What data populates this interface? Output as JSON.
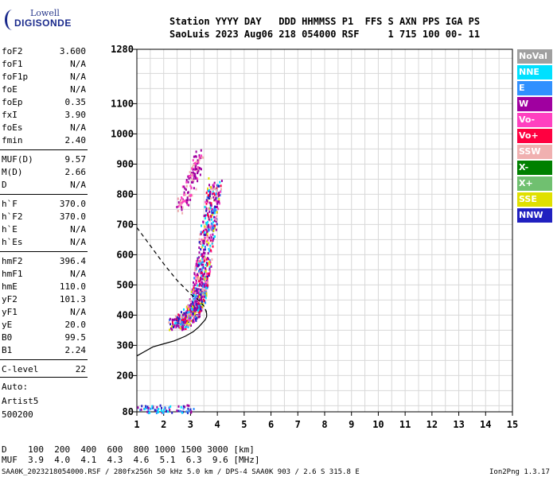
{
  "logo": {
    "line1": "Lowell",
    "line2": "DIGISONDE"
  },
  "header": {
    "line1": "Station YYYY DAY   DDD HHMMSS P1  FFS S AXN PPS IGA PS",
    "line2": "SaoLuis 2023 Aug06 218 054000 RSF     1 715 100 00- 11"
  },
  "params": [
    {
      "key": "foF2",
      "value": "3.600"
    },
    {
      "key": "foF1",
      "value": "N/A"
    },
    {
      "key": "foF1p",
      "value": "N/A"
    },
    {
      "key": "foE",
      "value": "N/A"
    },
    {
      "key": "foEp",
      "value": "0.35"
    },
    {
      "key": "fxI",
      "value": "3.90"
    },
    {
      "key": "foEs",
      "value": "N/A"
    },
    {
      "key": "fmin",
      "value": "2.40"
    },
    {
      "key": "MUF(D)",
      "value": "9.57"
    },
    {
      "key": "M(D)",
      "value": "2.66"
    },
    {
      "key": "D",
      "value": "N/A"
    },
    {
      "key": "h`F",
      "value": "370.0"
    },
    {
      "key": "h`F2",
      "value": "370.0"
    },
    {
      "key": "h`E",
      "value": "N/A"
    },
    {
      "key": "h`Es",
      "value": "N/A"
    },
    {
      "key": "hmF2",
      "value": "396.4"
    },
    {
      "key": "hmF1",
      "value": "N/A"
    },
    {
      "key": "hmE",
      "value": "110.0"
    },
    {
      "key": "yF2",
      "value": "101.3"
    },
    {
      "key": "yF1",
      "value": "N/A"
    },
    {
      "key": "yE",
      "value": "20.0"
    },
    {
      "key": "B0",
      "value": "99.5"
    },
    {
      "key": "B1",
      "value": "2.24"
    },
    {
      "key": "C-level",
      "value": "22"
    }
  ],
  "autoscale": {
    "label": "Auto:",
    "artist": "Artist5",
    "code": "500200"
  },
  "legend": [
    {
      "label": "NoVal",
      "color": "#a0a0a0"
    },
    {
      "label": "NNE",
      "color": "#00e0ff"
    },
    {
      "label": "E",
      "color": "#3090ff"
    },
    {
      "label": "W",
      "color": "#a000a0"
    },
    {
      "label": "Vo-",
      "color": "#ff40c0"
    },
    {
      "label": "Vo+",
      "color": "#ff0040"
    },
    {
      "label": "SSW",
      "color": "#f0b0b0"
    },
    {
      "label": "X-",
      "color": "#008000"
    },
    {
      "label": "X+",
      "color": "#70c070"
    },
    {
      "label": "SSE",
      "color": "#e0e000"
    },
    {
      "label": "NNW",
      "color": "#2020c0"
    }
  ],
  "muf_table": {
    "line1": "D    100  200  400  600  800 1000 1500 3000 [km]",
    "line2": "MUF  3.9  4.0  4.1  4.3  4.6  5.1  6.3  9.6 [MHz]"
  },
  "footer": {
    "left": "SAA0K_2023218054000.RSF / 280fx256h 50 kHz 5.0 km / DPS-4 SAA0K 903 / 2.6 S 315.8 E",
    "right": "Ion2Png 1.3.17"
  },
  "chart_data": {
    "type": "scatter",
    "title": "",
    "xlabel": "",
    "ylabel": "",
    "xlim": [
      1,
      15
    ],
    "ylim": [
      80,
      1280
    ],
    "x_ticks": [
      1,
      2,
      3,
      4,
      5,
      6,
      7,
      8,
      9,
      10,
      11,
      12,
      13,
      14,
      15
    ],
    "y_ticks": [
      80,
      200,
      300,
      400,
      500,
      600,
      700,
      800,
      900,
      1000,
      1100,
      1280
    ],
    "grid": true,
    "trace_o": {
      "freq": [
        2.4,
        2.6,
        2.8,
        3.0,
        3.1,
        3.2,
        3.3,
        3.35,
        3.4,
        3.5,
        3.6,
        3.7,
        3.8,
        3.9
      ],
      "height": [
        370,
        380,
        390,
        405,
        420,
        440,
        470,
        500,
        540,
        600,
        660,
        720,
        780,
        840
      ]
    },
    "trace_x": {
      "freq": [
        2.6,
        2.8,
        3.0,
        3.1,
        3.2,
        3.3
      ],
      "height": [
        760,
        800,
        840,
        870,
        900,
        940
      ]
    },
    "profile": {
      "freq": [
        1.0,
        1.3,
        1.6,
        2.0,
        2.4,
        2.8,
        3.1,
        3.3,
        3.45,
        3.55,
        3.6,
        3.6,
        3.55
      ],
      "height": [
        265,
        280,
        295,
        305,
        315,
        330,
        345,
        360,
        375,
        385,
        395,
        405,
        420
      ]
    },
    "muf_curve": {
      "freq": [
        1.0,
        1.5,
        2.0,
        2.5,
        3.0,
        3.3,
        3.5,
        3.6
      ],
      "height": [
        690,
        630,
        570,
        515,
        470,
        450,
        430,
        410
      ]
    },
    "es_band": {
      "freq_range": [
        1.0,
        3.1
      ],
      "height": 80
    }
  }
}
